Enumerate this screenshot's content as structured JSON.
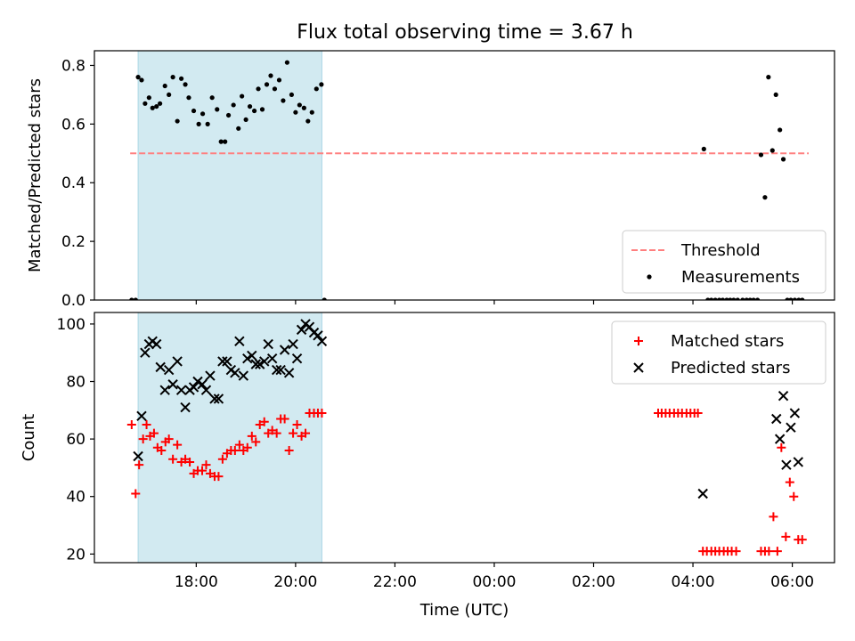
{
  "title": "Flux total observing time = 3.67 h",
  "chart_data": [
    {
      "type": "scatter",
      "ylabel": "Matched/Predicted stars",
      "xlabel": "",
      "x_unit": "hours since 00:00 UTC of first day",
      "xlim": [
        15.95,
        30.85
      ],
      "ylim": [
        0,
        0.85
      ],
      "yticks": [
        0,
        0.2,
        0.4,
        0.6,
        0.8
      ],
      "ytick_labels": [
        "0.0",
        "0.2",
        "0.4",
        "0.6",
        "0.8"
      ],
      "grid": false,
      "legend_position": "lower-right",
      "shaded_span": {
        "x": [
          16.83,
          20.53
        ],
        "color": "#add8e6"
      },
      "threshold": {
        "label": "Threshold",
        "y": 0.5,
        "x": [
          16.67,
          30.33
        ],
        "color": "#ff7f7f",
        "style": "dashed"
      },
      "series": [
        {
          "name": "Measurements",
          "marker": "dot",
          "color": "#000000",
          "x": [
            16.7,
            16.78,
            16.83,
            16.9,
            16.97,
            17.05,
            17.12,
            17.2,
            17.27,
            17.37,
            17.45,
            17.53,
            17.62,
            17.7,
            17.78,
            17.85,
            17.95,
            18.05,
            18.13,
            18.23,
            18.32,
            18.42,
            18.5,
            18.58,
            18.65,
            18.75,
            18.85,
            18.92,
            19.0,
            19.08,
            19.17,
            19.25,
            19.33,
            19.42,
            19.5,
            19.58,
            19.67,
            19.75,
            19.83,
            19.92,
            20.0,
            20.08,
            20.17,
            20.25,
            20.33,
            20.42,
            20.52,
            20.58,
            28.22,
            28.3,
            28.37,
            28.45,
            28.53,
            28.6,
            28.68,
            28.75,
            28.82,
            28.9,
            29.0,
            29.08,
            29.15,
            29.22,
            29.3,
            29.37,
            29.45,
            29.52,
            29.6,
            29.67,
            29.75,
            29.82,
            29.9,
            29.97,
            30.05,
            30.13,
            30.2
          ],
          "y": [
            0.0,
            0.0,
            0.76,
            0.75,
            0.67,
            0.69,
            0.655,
            0.66,
            0.67,
            0.73,
            0.7,
            0.76,
            0.61,
            0.755,
            0.735,
            0.69,
            0.645,
            0.6,
            0.635,
            0.6,
            0.69,
            0.65,
            0.54,
            0.54,
            0.63,
            0.665,
            0.585,
            0.695,
            0.615,
            0.66,
            0.645,
            0.72,
            0.65,
            0.735,
            0.765,
            0.72,
            0.75,
            0.68,
            0.81,
            0.7,
            0.64,
            0.665,
            0.655,
            0.61,
            0.64,
            0.72,
            0.735,
            0.0,
            0.515,
            0.0,
            0.0,
            0.0,
            0.0,
            0.0,
            0.0,
            0.0,
            0.0,
            0.0,
            0.0,
            0.0,
            0.0,
            0.0,
            0.0,
            0.495,
            0.35,
            0.76,
            0.51,
            0.7,
            0.58,
            0.48,
            0.0,
            0.0,
            0.0,
            0.0,
            0.0
          ]
        }
      ],
      "legend": [
        "Threshold",
        "Measurements"
      ]
    },
    {
      "type": "scatter",
      "ylabel": "Count",
      "xlabel": "Time (UTC)",
      "x_unit": "hours since 00:00 UTC of first day",
      "xlim": [
        15.95,
        30.85
      ],
      "ylim": [
        17,
        104
      ],
      "yticks": [
        20,
        40,
        60,
        80,
        100
      ],
      "ytick_labels": [
        "20",
        "40",
        "60",
        "80",
        "100"
      ],
      "xticks": [
        18,
        20,
        22,
        24,
        26,
        28,
        30
      ],
      "xtick_labels": [
        "18:00",
        "20:00",
        "22:00",
        "00:00",
        "02:00",
        "04:00",
        "06:00"
      ],
      "grid": false,
      "legend_position": "upper-right",
      "shaded_span": {
        "x": [
          16.83,
          20.53
        ],
        "color": "#add8e6"
      },
      "series": [
        {
          "name": "Matched stars",
          "marker": "plus",
          "color": "#ff0000",
          "x": [
            16.7,
            16.78,
            16.85,
            16.93,
            17.0,
            17.07,
            17.15,
            17.22,
            17.3,
            17.38,
            17.45,
            17.53,
            17.62,
            17.7,
            17.78,
            17.87,
            17.95,
            18.03,
            18.12,
            18.2,
            18.28,
            18.37,
            18.45,
            18.53,
            18.62,
            18.7,
            18.78,
            18.87,
            18.95,
            19.03,
            19.12,
            19.2,
            19.28,
            19.37,
            19.45,
            19.53,
            19.62,
            19.7,
            19.78,
            19.87,
            19.95,
            20.03,
            20.12,
            20.2,
            20.28,
            20.37,
            20.45,
            20.53,
            27.3,
            27.37,
            27.45,
            27.53,
            27.62,
            27.7,
            27.78,
            27.87,
            27.95,
            28.03,
            28.1,
            28.2,
            28.28,
            28.37,
            28.45,
            28.53,
            28.62,
            28.7,
            28.78,
            28.87,
            29.37,
            29.45,
            29.53,
            29.62,
            29.7,
            29.78,
            29.87,
            29.95,
            30.03,
            30.12,
            30.2
          ],
          "y": [
            65,
            41,
            51,
            60,
            65,
            61,
            62,
            57,
            56,
            59,
            60,
            53,
            58,
            52,
            53,
            52,
            48,
            49,
            49,
            51,
            48,
            47,
            47,
            53,
            55,
            56,
            56,
            58,
            56,
            57,
            61,
            59,
            65,
            66,
            62,
            63,
            62,
            67,
            67,
            56,
            62,
            65,
            61,
            62,
            69,
            69,
            69,
            69,
            69,
            69,
            69,
            69,
            69,
            69,
            69,
            69,
            69,
            69,
            69,
            21,
            21,
            21,
            21,
            21,
            21,
            21,
            21,
            21,
            21,
            21,
            21,
            33,
            21,
            57,
            26,
            45,
            40,
            25,
            25
          ],
          "x_trimmed": true
        },
        {
          "name": "Predicted stars",
          "marker": "x",
          "color": "#000000",
          "x": [
            16.83,
            16.9,
            16.97,
            17.05,
            17.12,
            17.2,
            17.28,
            17.37,
            17.45,
            17.53,
            17.62,
            17.7,
            17.78,
            17.87,
            17.95,
            18.03,
            18.12,
            18.2,
            18.28,
            18.37,
            18.45,
            18.53,
            18.62,
            18.7,
            18.78,
            18.87,
            18.95,
            19.03,
            19.12,
            19.2,
            19.28,
            19.37,
            19.45,
            19.53,
            19.62,
            19.7,
            19.78,
            19.87,
            19.95,
            20.03,
            20.12,
            20.2,
            20.28,
            20.37,
            20.45,
            20.53,
            28.2,
            29.68,
            29.75,
            29.82,
            29.88,
            29.97,
            30.05,
            30.12
          ],
          "y": [
            54,
            68,
            90,
            93,
            94,
            93,
            85,
            77,
            84,
            79,
            87,
            77,
            71,
            77,
            78,
            80,
            79,
            77,
            82,
            74,
            74,
            87,
            87,
            84,
            83,
            94,
            82,
            88,
            89,
            86,
            86,
            87,
            93,
            88,
            84,
            84,
            91,
            83,
            93,
            88,
            98,
            100,
            99,
            97,
            96,
            94,
            41,
            67,
            60,
            75,
            51,
            64,
            69,
            52
          ]
        }
      ],
      "legend": [
        "Matched stars",
        "Predicted stars"
      ]
    }
  ]
}
